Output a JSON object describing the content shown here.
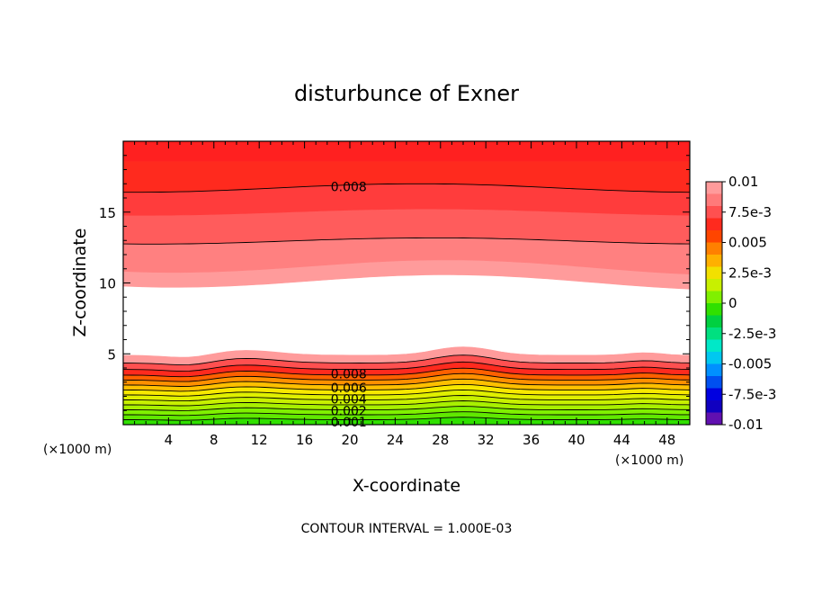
{
  "chart_data": {
    "type": "heatmap",
    "title": "disturbunce of Exner",
    "xlabel": "X-coordinate",
    "ylabel": "Z-coordinate",
    "x_unit": "(×1000 m)",
    "y_unit": "(×1000 m)",
    "xlim": [
      0,
      50
    ],
    "ylim": [
      0,
      20
    ],
    "x_ticks": [
      "4",
      "8",
      "12",
      "16",
      "20",
      "24",
      "28",
      "32",
      "36",
      "40",
      "44",
      "48"
    ],
    "y_ticks": [
      "5",
      "10",
      "15"
    ],
    "footer": "CONTOUR INTERVAL = 1.000E-03",
    "colorbar": {
      "labels": [
        "0.01",
        "7.5e-3",
        "0.005",
        "2.5e-3",
        "0",
        "-2.5e-3",
        "-0.005",
        "-7.5e-3",
        "-0.01"
      ],
      "colors_top_to_bottom": [
        "#ff9b9b",
        "#ff7a7a",
        "#ff5050",
        "#ff2a1e",
        "#ff4500",
        "#ff8000",
        "#ffb000",
        "#f2e000",
        "#c8f000",
        "#80f000",
        "#30e000",
        "#00d040",
        "#00e080",
        "#00e8c8",
        "#00c8f0",
        "#0090ff",
        "#0050f0",
        "#0000e0",
        "#1000c0",
        "#6010b0"
      ]
    },
    "contour_labels": [
      {
        "text": "0.008",
        "x": 18,
        "z": 16.8
      },
      {
        "text": "0.008",
        "x": 18,
        "z": 3.6
      },
      {
        "text": "0.006",
        "x": 18,
        "z": 2.6
      },
      {
        "text": "0.004",
        "x": 18,
        "z": 1.8
      },
      {
        "text": "0.002",
        "x": 18,
        "z": 1.0
      },
      {
        "text": "0.001",
        "x": 18,
        "z": 0.2
      }
    ]
  }
}
